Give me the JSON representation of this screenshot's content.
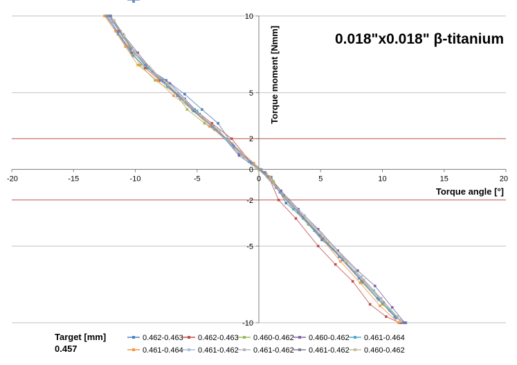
{
  "chart_data": {
    "type": "line",
    "title": "0.018\"x0.018\"  β-titanium",
    "xlabel": "Torque angle [°]",
    "ylabel": "Torque moment [Nmm]",
    "xlim": [
      -20,
      20
    ],
    "ylim": [
      -10,
      10
    ],
    "x_ticks": [
      "-20",
      "-15",
      "-10",
      "-5",
      "0",
      "5",
      "10",
      "15",
      "20"
    ],
    "y_ticks": [
      "10",
      "5",
      "2",
      "0",
      "-2",
      "-5",
      "-10"
    ],
    "y_tick_values": [
      10,
      5,
      2,
      0,
      -2,
      -5,
      -10
    ],
    "gridlines": [
      10,
      5,
      0,
      -5,
      -10
    ],
    "target_lines": [
      2,
      -2
    ],
    "grid": true,
    "legend_position": "bottom",
    "series": [
      {
        "name": "0.462-0.463",
        "color": "#4f81bd",
        "x": [
          -12,
          -11.2,
          -10,
          -9,
          -7.5,
          -6,
          -4.6,
          -3.3,
          -1.6,
          -0.5,
          0,
          1,
          2.2,
          3.6,
          5.1,
          6.8,
          8.3,
          9.6,
          11,
          11.9
        ],
        "y": [
          10,
          9,
          7.6,
          6.6,
          5.8,
          4.9,
          3.9,
          3.0,
          1.0,
          0.4,
          0,
          -0.5,
          -2.2,
          -3.2,
          -4.6,
          -5.8,
          -7.3,
          -8.4,
          -9.6,
          -10
        ]
      },
      {
        "name": "0.462-0.463",
        "color": "#c0504d",
        "x": [
          -12.4,
          -11.5,
          -10.3,
          -9.2,
          -8,
          -6.6,
          -5.2,
          -3.8,
          -2.2,
          -0.6,
          0,
          0.8,
          1.6,
          3,
          4.8,
          6.2,
          7.6,
          9,
          10.3,
          11.4
        ],
        "y": [
          10,
          9,
          7.6,
          6.6,
          5.8,
          4.9,
          3.9,
          3.0,
          2.0,
          0.4,
          0,
          -0.5,
          -2.0,
          -3.2,
          -5.0,
          -6.2,
          -7.3,
          -8.8,
          -9.6,
          -10
        ]
      },
      {
        "name": "0.460-0.462",
        "color": "#9bbb59",
        "x": [
          -11.2,
          -10.5,
          -9.6,
          -8.4,
          -6.8,
          -5.8,
          -4.4,
          -2.6,
          -1.2,
          0,
          0.6,
          1.2,
          2.4,
          4,
          5.6,
          7.1,
          8.4,
          10,
          11.2
        ],
        "y": [
          9,
          8,
          6.8,
          5.8,
          5.0,
          3.9,
          3.0,
          2.0,
          0.8,
          0,
          -0.3,
          -0.8,
          -2.0,
          -3.6,
          -4.8,
          -6.1,
          -7.4,
          -8.8,
          -9.6
        ]
      },
      {
        "name": "0.460-0.462",
        "color": "#8064a2",
        "x": [
          -12,
          -11,
          -9.8,
          -8.6,
          -7.2,
          -6,
          -4.8,
          -3.2,
          -1.6,
          -0.2,
          0.5,
          1.8,
          3.2,
          4.8,
          6.4,
          8,
          9.4,
          10.8,
          11.8
        ],
        "y": [
          10,
          8.8,
          7.6,
          6.4,
          5.6,
          4.6,
          3.6,
          2.4,
          0.9,
          0.1,
          -0.2,
          -1.4,
          -2.6,
          -3.9,
          -5.3,
          -6.6,
          -7.6,
          -9.0,
          -10
        ]
      },
      {
        "name": "0.461-0.464",
        "color": "#4bacc6",
        "x": [
          -12.3,
          -11.4,
          -10.2,
          -9,
          -7.4,
          -6.3,
          -5,
          -3.6,
          -2,
          -0.8,
          0.2,
          1.4,
          2.8,
          4.5,
          6,
          7.8,
          9.3,
          10.6,
          11.6
        ],
        "y": [
          10,
          8.8,
          7.4,
          6.6,
          5.4,
          4.6,
          3.8,
          2.6,
          1.4,
          0.5,
          0,
          -1.2,
          -2.6,
          -4.0,
          -5.2,
          -6.7,
          -7.9,
          -9.2,
          -10
        ]
      },
      {
        "name": "0.461-0.464",
        "color": "#f79646",
        "x": [
          -12.5,
          -11.6,
          -10.8,
          -9.8,
          -8.2,
          -6.9,
          -5.4,
          -4,
          -2.2,
          -0.4,
          0.9,
          2,
          3.4,
          5,
          6.6,
          8.2,
          9.8,
          11.3
        ],
        "y": [
          10,
          9,
          8,
          6.8,
          5.8,
          4.8,
          3.9,
          2.8,
          1.7,
          0.4,
          -0.5,
          -1.8,
          -3.0,
          -4.4,
          -6.0,
          -7.4,
          -8.9,
          -10
        ]
      },
      {
        "name": "0.461-0.462",
        "color": "#aabed8",
        "x": [
          -11.8,
          -11,
          -10,
          -8.8,
          -7.4,
          -6.1,
          -4.9,
          -3.4,
          -1.7,
          -0.3,
          0.8,
          2.1,
          3.7,
          5.3,
          6.9,
          8.5,
          10,
          11.4
        ],
        "y": [
          9.6,
          8.6,
          7.6,
          6.6,
          5.6,
          4.6,
          3.6,
          2.6,
          1.2,
          0.2,
          -0.6,
          -1.8,
          -3.0,
          -4.4,
          -5.8,
          -7.2,
          -8.6,
          -9.8
        ]
      },
      {
        "name": "0.461-0.462",
        "color": "#b7b7b7",
        "x": [
          -11.9,
          -11.1,
          -10.1,
          -8.9,
          -7.6,
          -6.4,
          -5.1,
          -3.6,
          -1.9,
          -0.5,
          0.6,
          1.9,
          3.4,
          5.1,
          6.7,
          8.3,
          9.9,
          11.2
        ],
        "y": [
          9.8,
          8.8,
          7.7,
          6.7,
          5.7,
          4.7,
          3.7,
          2.7,
          1.3,
          0.3,
          -0.4,
          -1.6,
          -2.9,
          -4.2,
          -5.6,
          -7.0,
          -8.4,
          -9.6
        ]
      },
      {
        "name": "0.461-0.462",
        "color": "#7f7f99",
        "x": [
          -12.1,
          -11.3,
          -10.3,
          -9.1,
          -7.8,
          -6.5,
          -5.2,
          -3.7,
          -2,
          -0.6,
          0.7,
          2,
          3.6,
          5.2,
          6.8,
          8.4,
          10.1,
          11.6
        ],
        "y": [
          10,
          9,
          7.9,
          6.8,
          5.8,
          4.8,
          3.8,
          2.8,
          1.5,
          0.4,
          -0.5,
          -1.7,
          -3.1,
          -4.5,
          -5.9,
          -7.3,
          -8.7,
          -10
        ]
      },
      {
        "name": "0.460-0.462",
        "color": "#c4bd97",
        "x": [
          -11.7,
          -10.9,
          -9.9,
          -8.7,
          -7.3,
          -6,
          -4.7,
          -3.2,
          -1.5,
          -0.2,
          0.9,
          2.2,
          3.8,
          5.4,
          7,
          8.6,
          10.2,
          11.5
        ],
        "y": [
          9.7,
          8.7,
          7.5,
          6.5,
          5.5,
          4.5,
          3.5,
          2.5,
          1.1,
          0.1,
          -0.7,
          -1.9,
          -3.2,
          -4.6,
          -6.0,
          -7.4,
          -8.8,
          -9.9
        ]
      },
      {
        "name": "0.460-0.462",
        "color": "#6d8fc0",
        "x": [
          -12.2,
          -11.4,
          -10.4,
          -9.2,
          -7.9,
          -6.6,
          -5.3,
          -3.8,
          -2.1,
          -0.7,
          0.4,
          1.7,
          3.2,
          4.9,
          6.5,
          8.1,
          9.7,
          11.1
        ],
        "y": [
          10,
          8.9,
          7.8,
          6.8,
          5.8,
          4.8,
          3.8,
          2.8,
          1.6,
          0.5,
          -0.2,
          -1.5,
          -2.8,
          -4.3,
          -5.7,
          -7.1,
          -8.5,
          -9.7
        ]
      }
    ]
  },
  "target": {
    "label": "Target [mm]",
    "value": "0.457",
    "line_color": "#c0504d"
  }
}
